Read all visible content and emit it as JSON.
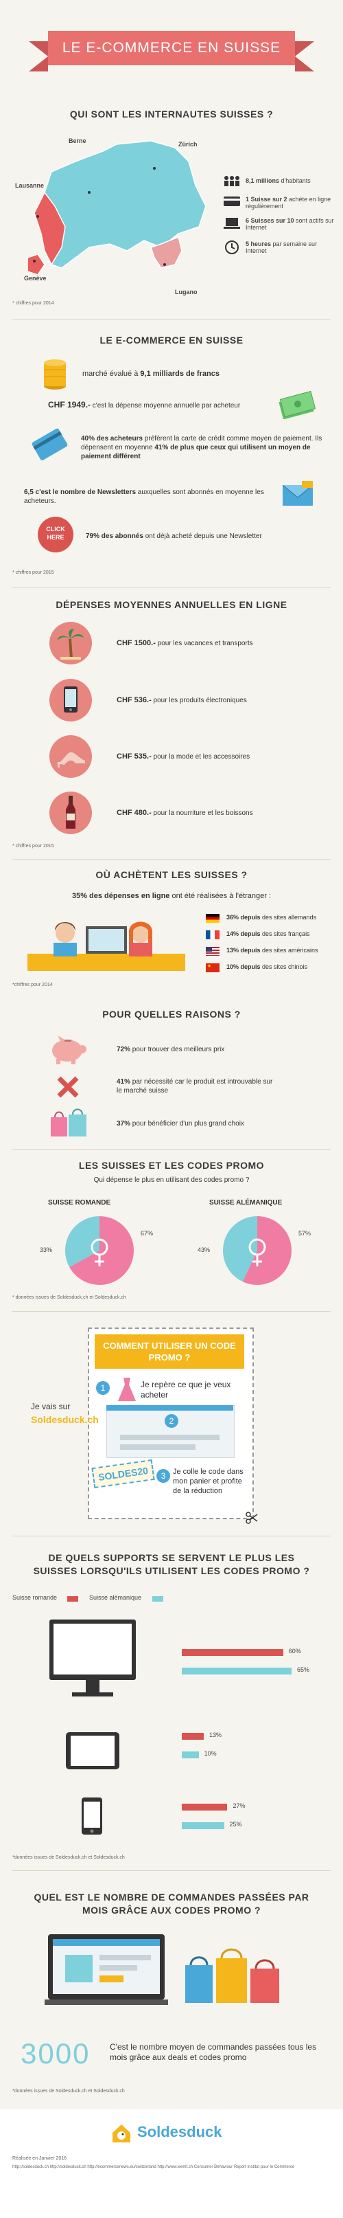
{
  "header": {
    "title": "LE E-COMMERCE EN SUISSE"
  },
  "sec1": {
    "title": "QUI SONT LES INTERNAUTES SUISSES ?",
    "cities": [
      "Berne",
      "Zürich",
      "Lausanne",
      "Genève",
      "Lugano"
    ],
    "stats": [
      {
        "bold": "8,1 millions",
        "rest": " d'habitants"
      },
      {
        "bold": "1 Suisse sur 2",
        "rest": " achète en ligne régulièrement"
      },
      {
        "bold": "6 Suisses sur 10",
        "rest": " sont actifs sur Internet"
      },
      {
        "bold": "5 heures",
        "rest": " par semaine sur Internet"
      }
    ],
    "note": "* chiffres pour 2014"
  },
  "sec2": {
    "title": "LE E-COMMERCE EN SUISSE",
    "market": {
      "pre": "marché évalué à ",
      "bold": "9,1 milliards de francs"
    },
    "spend": {
      "bold": "CHF 1949.-",
      "rest": " c'est la dépense moyenne annuelle par acheteur"
    },
    "card": {
      "bold1": "40% des acheteurs",
      "rest1": " préfèrent la carte de crédit comme moyen de paiement. Ils dépensent en moyenne ",
      "bold2": "41% de plus que ceux qui utilisent un moyen de paiement différent"
    },
    "news": {
      "bold": "6,5 c'est le nombre de Newsletters",
      "rest": " auxquelles sont abonnés en moyenne les acheteurs."
    },
    "click": {
      "badge1": "CLICK",
      "badge2": "HERE",
      "bold": "79% des abonnés",
      "rest": " ont déjà acheté depuis une Newsletter"
    },
    "note": "* chiffres pour 2015"
  },
  "sec3": {
    "title": "DÉPENSES MOYENNES ANNUELLES EN LIGNE",
    "items": [
      {
        "bold": "CHF 1500.-",
        "rest": " pour les vacances et transports",
        "icon": "palm-tree-icon"
      },
      {
        "bold": "CHF 536.-",
        "rest": " pour les produits électroniques",
        "icon": "smartphone-icon"
      },
      {
        "bold": "CHF 535.-",
        "rest": " pour la mode et les accessoires",
        "icon": "high-heel-icon"
      },
      {
        "bold": "CHF 480.-",
        "rest": " pour la nourriture et les boissons",
        "icon": "wine-bottle-icon"
      }
    ],
    "note": "* chiffres pour 2015"
  },
  "sec4": {
    "title": "OÙ ACHÈTENT LES SUISSES ?",
    "lead": {
      "bold": "35% des dépenses en ligne",
      "rest": " ont été réalisées à l'étranger :"
    },
    "rows": [
      {
        "bold": "36% depuis",
        "rest": " des sites allemands",
        "flag": "de"
      },
      {
        "bold": "14% depuis",
        "rest": " des sites français",
        "flag": "fr"
      },
      {
        "bold": "13% depuis",
        "rest": " des sites américains",
        "flag": "us"
      },
      {
        "bold": "10% depuis",
        "rest": " des sites chinois",
        "flag": "cn"
      }
    ],
    "note": "*chiffres pour 2014"
  },
  "sec5": {
    "title": "POUR QUELLES RAISONS ?",
    "reasons": [
      {
        "bold": "72%",
        "rest": " pour trouver des meilleurs prix",
        "icon": "piggy-bank-icon"
      },
      {
        "bold": "41%",
        "rest": " par nécessité car le produit est introuvable sur le marché suisse",
        "icon": "cross-icon"
      },
      {
        "bold": "37%",
        "rest": " pour bénéficier d'un plus grand choix",
        "icon": "shopping-bags-icon"
      }
    ]
  },
  "sec6": {
    "title": "LES SUISSES ET LES CODES PROMO",
    "sub": "Qui dépense le plus en utilisant des codes promo ?",
    "pies": [
      {
        "label": "SUISSE ROMANDE",
        "male": 33,
        "female": 67,
        "male_label": "33%",
        "female_label": "67%"
      },
      {
        "label": "SUISSE ALÉMANIQUE",
        "male": 43,
        "female": 57,
        "male_label": "43%",
        "female_label": "57%"
      }
    ],
    "note": "* données issues de Soldesduck.ch et Soldesduck.ch"
  },
  "sec7": {
    "title": "COMMENT UTILISER UN CODE PROMO ?",
    "side1": "Je vais sur",
    "side2": "Soldesduck.ch",
    "step1": "Je repère ce que je veux acheter",
    "step2": "2",
    "step3": "Je colle le code dans mon panier et profite de la réduction",
    "code": "SOLDES20",
    "n1": "1",
    "n3": "3"
  },
  "sec8": {
    "title": "DE QUELS SUPPORTS SE SERVENT LE PLUS LES SUISSES LORSQU'ILS UTILISENT LES CODES PROMO ?",
    "legend_r": "Suisse romande",
    "legend_a": "Suisse alémanique",
    "devices": [
      {
        "icon": "desktop-icon",
        "romande": 60,
        "alemanique": 65,
        "r_label": "60%",
        "a_label": "65%"
      },
      {
        "icon": "tablet-icon",
        "romande": 13,
        "alemanique": 10,
        "r_label": "13%",
        "a_label": "10%"
      },
      {
        "icon": "smartphone-icon",
        "romande": 27,
        "alemanique": 25,
        "r_label": "27%",
        "a_label": "25%"
      }
    ],
    "note": "*données issues de Soldesduck.ch et Soldesduck.ch"
  },
  "sec9": {
    "title": "QUEL EST LE NOMBRE DE COMMANDES PASSÉES PAR MOIS GRÂCE AUX CODES PROMO ?",
    "big": "3000",
    "text": "C'est le nombre moyen de commandes passées tous les mois grâce aux deals et codes promo",
    "note": "*données issues de Soldesduck.ch et Soldesduck.ch"
  },
  "footer": {
    "brand": "Soldesduck",
    "pub": "Réalisée en Janvier 2016",
    "sources": "http://soldesduck.ch  http://soldesduck.ch  http://ecommercenews.eu/switzerland  http://www.wemf.ch  Consumer Behaviour Report  Institut pour le Commerce"
  },
  "colors": {
    "accent": "#e85d5d",
    "teal": "#7ed0da",
    "pink": "#f07ca3",
    "dark": "#3a3a3a",
    "yellow": "#f4b61a"
  }
}
